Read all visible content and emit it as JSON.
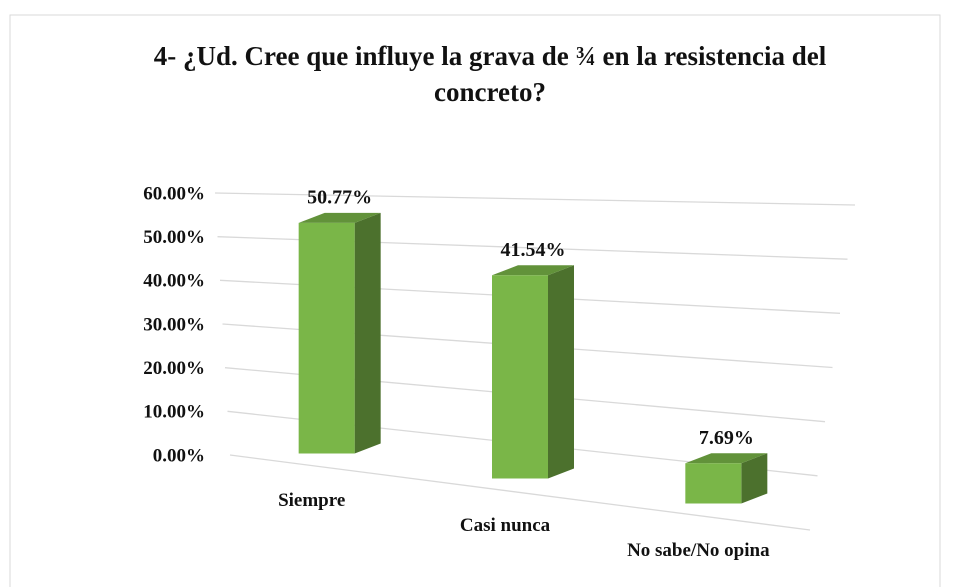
{
  "chart_data": {
    "type": "bar3d",
    "title": "4- ¿Ud. Cree que influye la grava de ¾ en la resistencia del concreto?",
    "categories": [
      "Siempre",
      "Casi nunca",
      "No sabe/No opina"
    ],
    "values": [
      50.77,
      41.54,
      7.69
    ],
    "value_labels": [
      "50.77%",
      "41.54%",
      "7.69%"
    ],
    "color": "#7ab648",
    "ylim": [
      0,
      60
    ],
    "yticks": [
      {
        "value": 0,
        "label": "0.00%"
      },
      {
        "value": 10,
        "label": "10.00%"
      },
      {
        "value": 20,
        "label": "20.00%"
      },
      {
        "value": 30,
        "label": "30.00%"
      },
      {
        "value": 40,
        "label": "40.00%"
      },
      {
        "value": 50,
        "label": "50.00%"
      },
      {
        "value": 60,
        "label": "60.00%"
      }
    ],
    "grid": true
  }
}
